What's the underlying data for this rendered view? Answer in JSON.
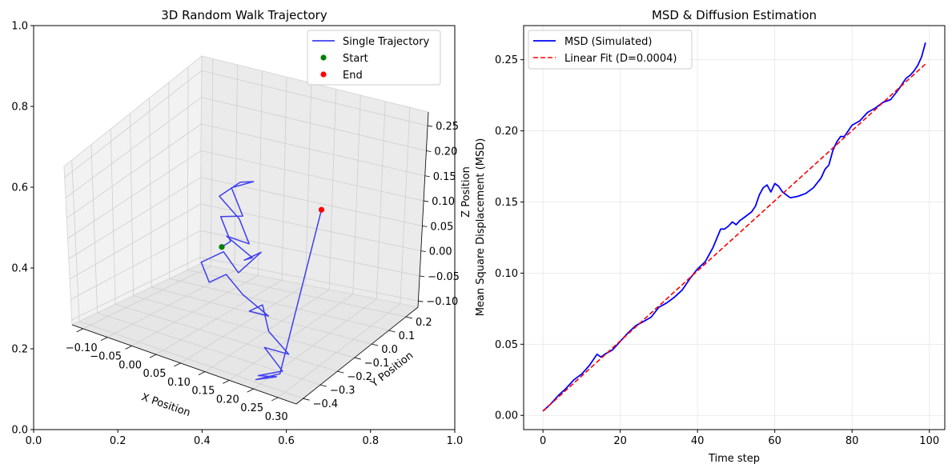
{
  "chart_data": [
    {
      "type": "line",
      "projection": "3d",
      "title": "3D Random Walk Trajectory",
      "outer_axes": {
        "xlim": [
          0,
          1
        ],
        "ylim": [
          0,
          1
        ],
        "xticks": [
          "0.0",
          "0.2",
          "0.4",
          "0.6",
          "0.8",
          "1.0"
        ],
        "yticks": [
          "0.0",
          "0.2",
          "0.4",
          "0.6",
          "0.8",
          "1.0"
        ]
      },
      "xlabel": "X Position",
      "ylabel": "Y Position",
      "zlabel": "Z Position",
      "xticks": [
        "−0.10",
        "−0.05",
        "0.00",
        "0.05",
        "0.10",
        "0.15",
        "0.20",
        "0.25",
        "0.30"
      ],
      "yticks": [
        "−0.4",
        "−0.3",
        "−0.2",
        "−0.1",
        "0.0",
        "0.1",
        "0.2"
      ],
      "zticks": [
        "−0.10",
        "−0.05",
        "0.00",
        "0.05",
        "0.10",
        "0.15",
        "0.20",
        "0.25"
      ],
      "xlim": [
        -0.13,
        0.31
      ],
      "ylim": [
        -0.46,
        0.25
      ],
      "zlim": [
        -0.11,
        0.26
      ],
      "grid": true,
      "legend": {
        "location": "top-right",
        "entries": [
          {
            "label": "Single Trajectory",
            "marker": "line",
            "color": "#3f3ff0"
          },
          {
            "label": "Start",
            "marker": "dot",
            "color": "#008000"
          },
          {
            "label": "End",
            "marker": "dot",
            "color": "#ff0000"
          }
        ]
      },
      "series": [
        {
          "name": "Single Trajectory",
          "color": "#3f3ff0",
          "note": "approximate projected path of the random walk",
          "points": [
            [
              0,
              0,
              0
            ],
            [
              0.01,
              0.02,
              0.01
            ],
            [
              -0.02,
              0.05,
              0.04
            ],
            [
              0.03,
              0.03,
              0.06
            ],
            [
              -0.01,
              0.08,
              0.09
            ],
            [
              0.04,
              0.06,
              0.12
            ],
            [
              0.0,
              0.1,
              0.1
            ],
            [
              -0.03,
              0.07,
              0.07
            ],
            [
              0.02,
              0.04,
              0.05
            ],
            [
              0.05,
              0.01,
              0.02
            ],
            [
              0.02,
              -0.03,
              0.03
            ],
            [
              0.06,
              0.0,
              0.0
            ],
            [
              0.03,
              0.04,
              -0.02
            ],
            [
              0.07,
              0.02,
              0.01
            ],
            [
              0.04,
              -0.02,
              -0.03
            ],
            [
              0.0,
              0.01,
              -0.01
            ],
            [
              -0.04,
              0.0,
              -0.04
            ],
            [
              -0.01,
              -0.04,
              -0.06
            ],
            [
              0.03,
              -0.06,
              -0.03
            ],
            [
              0.07,
              -0.08,
              -0.05
            ],
            [
              0.11,
              -0.05,
              -0.08
            ],
            [
              0.09,
              -0.1,
              -0.07
            ],
            [
              0.13,
              -0.14,
              -0.04
            ],
            [
              0.16,
              -0.19,
              -0.07
            ],
            [
              0.21,
              -0.22,
              -0.09
            ],
            [
              0.18,
              -0.27,
              -0.08
            ],
            [
              0.23,
              -0.31,
              -0.1
            ],
            [
              0.2,
              -0.36,
              -0.11
            ],
            [
              0.25,
              -0.4,
              -0.09
            ],
            [
              0.22,
              -0.43,
              -0.1
            ],
            [
              0.26,
              -0.41,
              -0.08
            ],
            [
              0.17,
              0.07,
              0.11
            ]
          ]
        },
        {
          "name": "Start",
          "color": "#008000",
          "points": [
            [
              0,
              0,
              0
            ]
          ]
        },
        {
          "name": "End",
          "color": "#ff0000",
          "points": [
            [
              0.17,
              0.07,
              0.11
            ]
          ]
        }
      ]
    },
    {
      "type": "line",
      "title": "MSD & Diffusion Estimation",
      "xlabel": "Time step",
      "ylabel": "Mean Square Displacement (MSD)",
      "xlim": [
        -5,
        104
      ],
      "ylim": [
        -0.01,
        0.274
      ],
      "xticks": [
        0,
        20,
        40,
        60,
        80,
        100
      ],
      "yticks": [
        0.0,
        0.05,
        0.1,
        0.15,
        0.2,
        0.25
      ],
      "ytick_labels": [
        "0.00",
        "0.05",
        "0.10",
        "0.15",
        "0.20",
        "0.25"
      ],
      "grid": true,
      "legend": {
        "location": "top-left"
      },
      "series": [
        {
          "name": "MSD (Simulated)",
          "color": "#0000ff",
          "style": "solid",
          "x": [
            0,
            2,
            4,
            6,
            8,
            10,
            12,
            14,
            15,
            16,
            18,
            20,
            22,
            24,
            26,
            28,
            30,
            32,
            34,
            36,
            38,
            40,
            42,
            44,
            46,
            47,
            48,
            49,
            50,
            51,
            52,
            54,
            55,
            56,
            57,
            58,
            59,
            60,
            61,
            62,
            63,
            64,
            66,
            68,
            70,
            72,
            73,
            74,
            75,
            76,
            77,
            78,
            80,
            82,
            84,
            86,
            88,
            90,
            92,
            94,
            95,
            96,
            97,
            98,
            99
          ],
          "values": [
            0.003,
            0.008,
            0.014,
            0.019,
            0.025,
            0.029,
            0.035,
            0.043,
            0.041,
            0.043,
            0.046,
            0.052,
            0.058,
            0.063,
            0.066,
            0.069,
            0.076,
            0.079,
            0.083,
            0.088,
            0.096,
            0.103,
            0.108,
            0.118,
            0.131,
            0.131,
            0.133,
            0.136,
            0.134,
            0.137,
            0.139,
            0.143,
            0.147,
            0.155,
            0.16,
            0.162,
            0.157,
            0.163,
            0.161,
            0.157,
            0.155,
            0.153,
            0.154,
            0.156,
            0.16,
            0.167,
            0.173,
            0.176,
            0.186,
            0.192,
            0.196,
            0.196,
            0.204,
            0.207,
            0.213,
            0.216,
            0.22,
            0.222,
            0.229,
            0.237,
            0.239,
            0.242,
            0.246,
            0.252,
            0.262
          ]
        },
        {
          "name": "Linear Fit (D=0.0004)",
          "color": "#ff0000",
          "style": "dashed",
          "x": [
            0,
            99
          ],
          "values": [
            0.003,
            0.247
          ]
        }
      ]
    }
  ]
}
